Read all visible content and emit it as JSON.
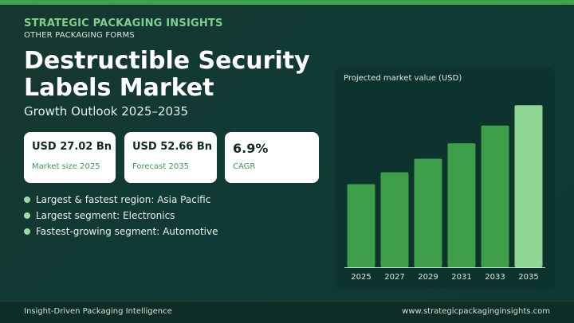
{
  "header": {
    "brand": "STRATEGIC PACKAGING INSIGHTS",
    "category": "OTHER PACKAGING FORMS",
    "title": "Destructible Security Labels Market",
    "subtitle": "Growth Outlook 2025–2035"
  },
  "stats": [
    {
      "value": "USD 27.02 Bn",
      "label": "Market size 2025"
    },
    {
      "value": "USD 52.66 Bn",
      "label": "Forecast 2035"
    },
    {
      "value": "6.9%",
      "label": "CAGR"
    }
  ],
  "bullets": [
    "Largest & fastest region: Asia Pacific",
    "Largest segment: Electronics",
    "Fastest-growing segment: Automotive"
  ],
  "chart_data": {
    "type": "bar",
    "caption": "Projected market value (USD)",
    "categories": [
      "2025",
      "2027",
      "2029",
      "2031",
      "2033",
      "2035"
    ],
    "values": [
      27.02,
      30.9,
      35.3,
      40.3,
      46.1,
      52.66
    ],
    "ylim": [
      0,
      53
    ],
    "grid": false,
    "bar_color": "#3f9e4a",
    "highlight_color": "#8fd694"
  },
  "footer": {
    "tagline": "Insight-Driven Packaging Intelligence",
    "website": "www.strategicpackaginginsights.com"
  },
  "colors": {
    "accent": "#3fa34d",
    "background": "#123630",
    "card": "#ffffff"
  }
}
